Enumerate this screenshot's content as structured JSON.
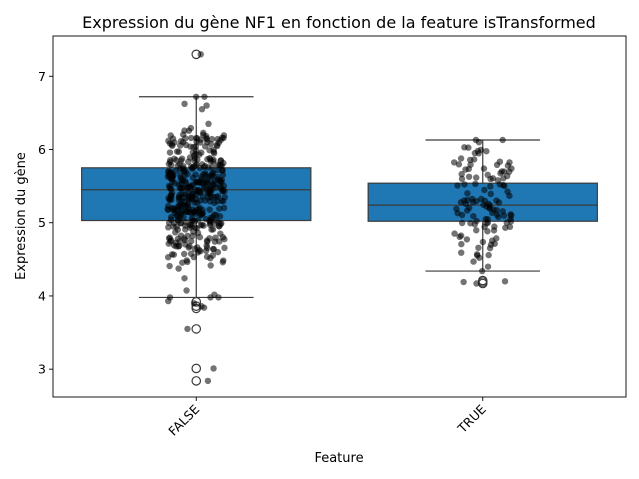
{
  "chart_data": {
    "type": "boxplot",
    "title": "Expression du gène NF1 en fonction de la feature isTransformed",
    "xlabel": "Feature",
    "ylabel": "Expression du gène",
    "ylim": [
      2.62,
      7.55
    ],
    "yticks": [
      3,
      4,
      5,
      6,
      7
    ],
    "categories": [
      "FALSE",
      "TRUE"
    ],
    "box_color": "#1f77b4",
    "point_color": "#000000",
    "boxes": [
      {
        "category": "FALSE",
        "whisker_low": 3.98,
        "q1": 5.03,
        "median": 5.45,
        "q3": 5.75,
        "whisker_high": 6.72,
        "outliers": [
          7.3,
          3.92,
          3.86,
          3.83,
          3.55,
          3.01,
          2.84
        ],
        "jitter": {
          "n": 420,
          "extra_points": [
            7.3,
            6.72,
            6.6,
            6.55,
            3.98,
            3.93,
            3.9,
            3.86,
            3.84,
            3.55,
            3.01,
            2.84
          ]
        }
      },
      {
        "category": "TRUE",
        "whisker_low": 4.34,
        "q1": 5.02,
        "median": 5.24,
        "q3": 5.54,
        "whisker_high": 6.13,
        "outliers": [
          4.21,
          4.19,
          4.17
        ],
        "jitter": {
          "n": 115,
          "extra_points": [
            6.13,
            6.1,
            5.98,
            4.34,
            4.4,
            4.2,
            4.19,
            4.17
          ]
        }
      }
    ]
  }
}
